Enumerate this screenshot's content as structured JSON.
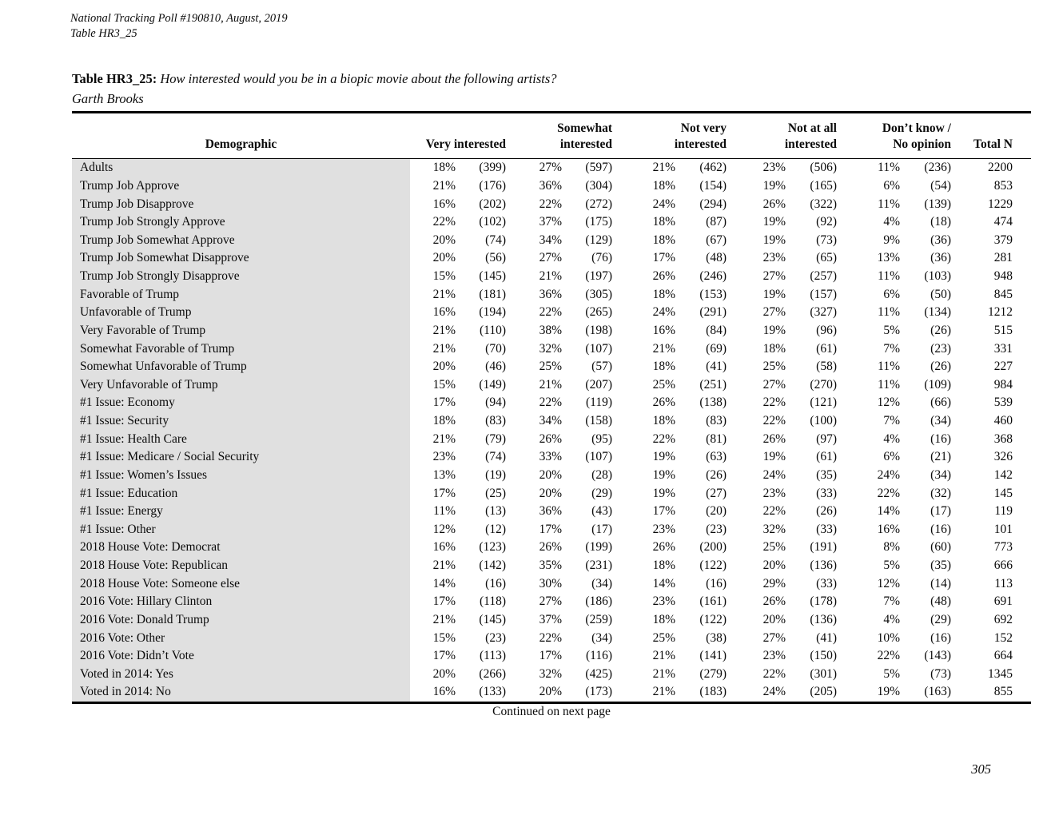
{
  "page": {
    "header_line1": "National Tracking Poll #190810, August, 2019",
    "header_line2": "Table HR3_25",
    "title_label": "Table HR3_25:",
    "title_question": "How interested would you be in a biopic movie about the following artists?",
    "title_subject": "Garth Brooks",
    "footer_note": "Continued on next page",
    "page_number": "305"
  },
  "colors": {
    "demographic_band": "#e0e0e0",
    "text": "#0a0a0a",
    "rule": "#000000"
  },
  "table": {
    "col_demographic": "Demographic",
    "col_groups": [
      {
        "line1": "",
        "line2": "Very interested"
      },
      {
        "line1": "Somewhat",
        "line2": "interested"
      },
      {
        "line1": "Not very",
        "line2": "interested"
      },
      {
        "line1": "Not at all",
        "line2": "interested"
      },
      {
        "line1": "Don’t know /",
        "line2": "No opinion"
      }
    ],
    "col_total": "Total N",
    "rows": [
      {
        "demographic": "Adults",
        "values": [
          "18%",
          "(399)",
          "27%",
          "(597)",
          "21%",
          "(462)",
          "23%",
          "(506)",
          "11%",
          "(236)",
          "2200"
        ]
      },
      {
        "demographic": "Trump Job Approve",
        "values": [
          "21%",
          "(176)",
          "36%",
          "(304)",
          "18%",
          "(154)",
          "19%",
          "(165)",
          "6%",
          "(54)",
          "853"
        ]
      },
      {
        "demographic": "Trump Job Disapprove",
        "values": [
          "16%",
          "(202)",
          "22%",
          "(272)",
          "24%",
          "(294)",
          "26%",
          "(322)",
          "11%",
          "(139)",
          "1229"
        ]
      },
      {
        "demographic": "Trump Job Strongly Approve",
        "values": [
          "22%",
          "(102)",
          "37%",
          "(175)",
          "18%",
          "(87)",
          "19%",
          "(92)",
          "4%",
          "(18)",
          "474"
        ]
      },
      {
        "demographic": "Trump Job Somewhat Approve",
        "values": [
          "20%",
          "(74)",
          "34%",
          "(129)",
          "18%",
          "(67)",
          "19%",
          "(73)",
          "9%",
          "(36)",
          "379"
        ]
      },
      {
        "demographic": "Trump Job Somewhat Disapprove",
        "values": [
          "20%",
          "(56)",
          "27%",
          "(76)",
          "17%",
          "(48)",
          "23%",
          "(65)",
          "13%",
          "(36)",
          "281"
        ]
      },
      {
        "demographic": "Trump Job Strongly Disapprove",
        "values": [
          "15%",
          "(145)",
          "21%",
          "(197)",
          "26%",
          "(246)",
          "27%",
          "(257)",
          "11%",
          "(103)",
          "948"
        ]
      },
      {
        "demographic": "Favorable of Trump",
        "values": [
          "21%",
          "(181)",
          "36%",
          "(305)",
          "18%",
          "(153)",
          "19%",
          "(157)",
          "6%",
          "(50)",
          "845"
        ]
      },
      {
        "demographic": "Unfavorable of Trump",
        "values": [
          "16%",
          "(194)",
          "22%",
          "(265)",
          "24%",
          "(291)",
          "27%",
          "(327)",
          "11%",
          "(134)",
          "1212"
        ]
      },
      {
        "demographic": "Very Favorable of Trump",
        "values": [
          "21%",
          "(110)",
          "38%",
          "(198)",
          "16%",
          "(84)",
          "19%",
          "(96)",
          "5%",
          "(26)",
          "515"
        ]
      },
      {
        "demographic": "Somewhat Favorable of Trump",
        "values": [
          "21%",
          "(70)",
          "32%",
          "(107)",
          "21%",
          "(69)",
          "18%",
          "(61)",
          "7%",
          "(23)",
          "331"
        ]
      },
      {
        "demographic": "Somewhat Unfavorable of Trump",
        "values": [
          "20%",
          "(46)",
          "25%",
          "(57)",
          "18%",
          "(41)",
          "25%",
          "(58)",
          "11%",
          "(26)",
          "227"
        ]
      },
      {
        "demographic": "Very Unfavorable of Trump",
        "values": [
          "15%",
          "(149)",
          "21%",
          "(207)",
          "25%",
          "(251)",
          "27%",
          "(270)",
          "11%",
          "(109)",
          "984"
        ]
      },
      {
        "demographic": "#1 Issue: Economy",
        "values": [
          "17%",
          "(94)",
          "22%",
          "(119)",
          "26%",
          "(138)",
          "22%",
          "(121)",
          "12%",
          "(66)",
          "539"
        ]
      },
      {
        "demographic": "#1 Issue: Security",
        "values": [
          "18%",
          "(83)",
          "34%",
          "(158)",
          "18%",
          "(83)",
          "22%",
          "(100)",
          "7%",
          "(34)",
          "460"
        ]
      },
      {
        "demographic": "#1 Issue: Health Care",
        "values": [
          "21%",
          "(79)",
          "26%",
          "(95)",
          "22%",
          "(81)",
          "26%",
          "(97)",
          "4%",
          "(16)",
          "368"
        ]
      },
      {
        "demographic": "#1 Issue: Medicare / Social Security",
        "values": [
          "23%",
          "(74)",
          "33%",
          "(107)",
          "19%",
          "(63)",
          "19%",
          "(61)",
          "6%",
          "(21)",
          "326"
        ]
      },
      {
        "demographic": "#1 Issue: Women’s Issues",
        "values": [
          "13%",
          "(19)",
          "20%",
          "(28)",
          "19%",
          "(26)",
          "24%",
          "(35)",
          "24%",
          "(34)",
          "142"
        ]
      },
      {
        "demographic": "#1 Issue: Education",
        "values": [
          "17%",
          "(25)",
          "20%",
          "(29)",
          "19%",
          "(27)",
          "23%",
          "(33)",
          "22%",
          "(32)",
          "145"
        ]
      },
      {
        "demographic": "#1 Issue: Energy",
        "values": [
          "11%",
          "(13)",
          "36%",
          "(43)",
          "17%",
          "(20)",
          "22%",
          "(26)",
          "14%",
          "(17)",
          "119"
        ]
      },
      {
        "demographic": "#1 Issue: Other",
        "values": [
          "12%",
          "(12)",
          "17%",
          "(17)",
          "23%",
          "(23)",
          "32%",
          "(33)",
          "16%",
          "(16)",
          "101"
        ]
      },
      {
        "demographic": "2018 House Vote: Democrat",
        "values": [
          "16%",
          "(123)",
          "26%",
          "(199)",
          "26%",
          "(200)",
          "25%",
          "(191)",
          "8%",
          "(60)",
          "773"
        ]
      },
      {
        "demographic": "2018 House Vote: Republican",
        "values": [
          "21%",
          "(142)",
          "35%",
          "(231)",
          "18%",
          "(122)",
          "20%",
          "(136)",
          "5%",
          "(35)",
          "666"
        ]
      },
      {
        "demographic": "2018 House Vote: Someone else",
        "values": [
          "14%",
          "(16)",
          "30%",
          "(34)",
          "14%",
          "(16)",
          "29%",
          "(33)",
          "12%",
          "(14)",
          "113"
        ]
      },
      {
        "demographic": "2016 Vote: Hillary Clinton",
        "values": [
          "17%",
          "(118)",
          "27%",
          "(186)",
          "23%",
          "(161)",
          "26%",
          "(178)",
          "7%",
          "(48)",
          "691"
        ]
      },
      {
        "demographic": "2016 Vote: Donald Trump",
        "values": [
          "21%",
          "(145)",
          "37%",
          "(259)",
          "18%",
          "(122)",
          "20%",
          "(136)",
          "4%",
          "(29)",
          "692"
        ]
      },
      {
        "demographic": "2016 Vote: Other",
        "values": [
          "15%",
          "(23)",
          "22%",
          "(34)",
          "25%",
          "(38)",
          "27%",
          "(41)",
          "10%",
          "(16)",
          "152"
        ]
      },
      {
        "demographic": "2016 Vote: Didn’t Vote",
        "values": [
          "17%",
          "(113)",
          "17%",
          "(116)",
          "21%",
          "(141)",
          "23%",
          "(150)",
          "22%",
          "(143)",
          "664"
        ]
      },
      {
        "demographic": "Voted in 2014: Yes",
        "values": [
          "20%",
          "(266)",
          "32%",
          "(425)",
          "21%",
          "(279)",
          "22%",
          "(301)",
          "5%",
          "(73)",
          "1345"
        ]
      },
      {
        "demographic": "Voted in 2014: No",
        "values": [
          "16%",
          "(133)",
          "20%",
          "(173)",
          "21%",
          "(183)",
          "24%",
          "(205)",
          "19%",
          "(163)",
          "855"
        ]
      }
    ]
  }
}
